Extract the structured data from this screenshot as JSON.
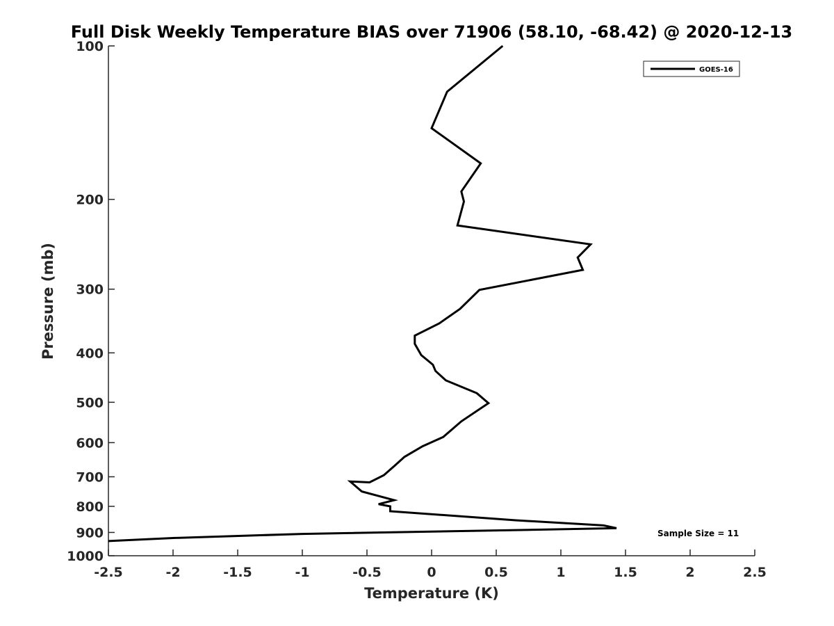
{
  "chart_data": {
    "type": "line",
    "title": "Full Disk Weekly Temperature BIAS over 71906 (58.10, -68.42) @ 2020-12-13",
    "xlabel": "Temperature (K)",
    "ylabel": "Pressure (mb)",
    "xlim": [
      -2.5,
      2.5
    ],
    "ylim": [
      100,
      1000
    ],
    "yscale": "log",
    "y_reversed": true,
    "grid": false,
    "xticks": [
      "-2.5",
      "-2",
      "-1.5",
      "-1",
      "-0.5",
      "0",
      "0.5",
      "1",
      "1.5",
      "2",
      "2.5"
    ],
    "yticks": [
      "100",
      "200",
      "300",
      "400",
      "500",
      "600",
      "700",
      "800",
      "900",
      "1000"
    ],
    "legend": {
      "placement": "top-right",
      "entries": [
        "GOES-16"
      ]
    },
    "annotations": [
      "Sample Size = 11"
    ],
    "series": [
      {
        "name": "GOES-16",
        "color": "#000000",
        "x": [
          0.55,
          0.12,
          0.0,
          0.38,
          0.23,
          0.25,
          0.2,
          1.23,
          1.13,
          1.17,
          0.37,
          0.22,
          0.06,
          -0.13,
          -0.13,
          -0.08,
          0.01,
          0.03,
          0.11,
          0.35,
          0.44,
          0.23,
          0.09,
          -0.07,
          -0.21,
          -0.28,
          -0.37,
          -0.48,
          -0.63,
          -0.54,
          -0.29,
          -0.41,
          -0.32,
          -0.32,
          0.65,
          1.33,
          1.43,
          0.5,
          -1.0,
          -2.0,
          -2.5
        ],
        "y": [
          100,
          123,
          145,
          170,
          193,
          202,
          225,
          245,
          260,
          275,
          301,
          328,
          350,
          370,
          384,
          404,
          422,
          434,
          453,
          480,
          502,
          545,
          585,
          610,
          640,
          664,
          695,
          718,
          715,
          748,
          778,
          792,
          800,
          818,
          852,
          872,
          883,
          892,
          906,
          923,
          936
        ]
      }
    ]
  }
}
